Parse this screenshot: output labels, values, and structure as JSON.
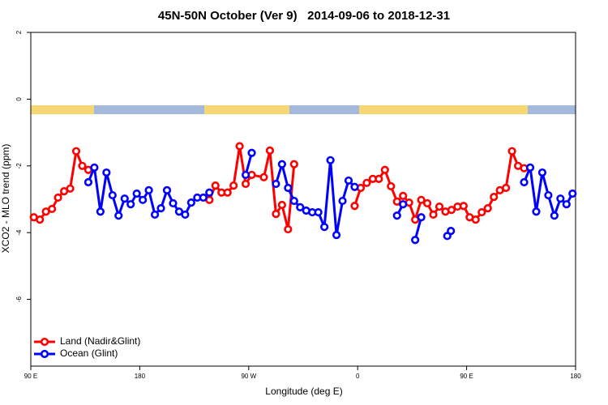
{
  "chart_data": {
    "type": "line",
    "title": "45N-50N October (Ver 9)   2014-09-06 to 2018-12-31",
    "x_label": "Longitude (deg E)",
    "y_label": "XCO2 - MLO trend (ppm)",
    "xlim": [
      90,
      540
    ],
    "xticks": [
      {
        "value": 90,
        "label": "90 E"
      },
      180,
      {
        "value": 270,
        "label": "90 W"
      },
      {
        "value": 360,
        "label": "0"
      },
      {
        "value": 450,
        "label": "90 E"
      },
      {
        "value": 540,
        "label": "180"
      }
    ],
    "ylim": [
      -8,
      2
    ],
    "yticks": [
      2,
      0,
      -2,
      -4,
      -6
    ],
    "legend": "bottom left",
    "series": [
      {
        "name": "Land (Nadir&Glint)",
        "color": "#ff0000",
        "x": [
          92.5,
          97.5,
          102.5,
          107.5,
          112.5,
          117.5,
          122.5,
          127.5,
          132.5,
          137.5,
          null,
          237.5,
          242.5,
          247.5,
          252.5,
          257.5,
          262.5,
          267.5,
          272.5,
          282.5,
          287.5,
          292.5,
          297.5,
          302.5,
          307.5,
          null,
          357.5,
          362.5,
          367.5,
          372.5,
          377.5,
          382.5,
          387.5,
          392.5,
          397.5,
          402.5,
          407.5,
          412.5,
          417.5,
          422.5,
          427.5,
          432.5,
          437.5,
          442.5,
          447.5,
          452.5,
          457.5,
          462.5,
          467.5,
          472.5,
          477.5,
          482.5,
          487.5,
          492.5,
          497.5
        ],
        "values": [
          -3.54,
          -3.61,
          -3.37,
          -3.29,
          -2.95,
          -2.76,
          -2.68,
          -1.56,
          -2.0,
          -2.12,
          null,
          -3.02,
          -2.59,
          -2.8,
          -2.8,
          -2.59,
          -1.41,
          -2.54,
          -2.27,
          -2.34,
          -1.54,
          -3.44,
          -3.17,
          -3.9,
          -1.95,
          null,
          -3.2,
          -2.66,
          -2.51,
          -2.39,
          -2.39,
          -2.12,
          -2.61,
          -3.07,
          -2.9,
          -3.1,
          -3.61,
          -3.02,
          -3.12,
          -3.46,
          -3.22,
          -3.37,
          -3.32,
          -3.22,
          -3.2,
          -3.54,
          -3.61,
          -3.39,
          -3.27,
          -2.93,
          -2.73,
          -2.66,
          -1.56,
          -2.0,
          -2.07
        ]
      },
      {
        "name": "Ocean (Glint)",
        "color": "#0000ff",
        "x": [
          137.5,
          142.5,
          147.5,
          152.5,
          157.5,
          162.5,
          167.5,
          172.5,
          177.5,
          182.5,
          187.5,
          192.5,
          197.5,
          202.5,
          207.5,
          212.5,
          217.5,
          222.5,
          227.5,
          232.5,
          237.5,
          null,
          267.5,
          272.5,
          null,
          292.5,
          297.5,
          302.5,
          307.5,
          312.5,
          317.5,
          322.5,
          327.5,
          332.5,
          337.5,
          342.5,
          347.5,
          352.5,
          357.5,
          null,
          392.5,
          397.5,
          null,
          407.5,
          412.5,
          null,
          434,
          437,
          null,
          497.5,
          502.5,
          507.5,
          512.5,
          517.5,
          522.5,
          527.5,
          532.5,
          537.5
        ],
        "values": [
          -2.49,
          -2.05,
          -3.37,
          -2.2,
          -2.88,
          -3.49,
          -2.98,
          -3.15,
          -2.83,
          -3.02,
          -2.73,
          -3.46,
          -3.27,
          -2.73,
          -3.12,
          -3.37,
          -3.46,
          -3.1,
          -2.95,
          -2.95,
          -2.8,
          null,
          -2.27,
          -1.61,
          null,
          -2.54,
          -1.95,
          -2.66,
          -3.05,
          -3.24,
          -3.34,
          -3.39,
          -3.39,
          -3.83,
          -1.83,
          -4.07,
          -3.05,
          -2.44,
          -2.63,
          null,
          -3.49,
          -3.15,
          null,
          -4.22,
          -3.54,
          null,
          -4.1,
          -3.95,
          null,
          -2.49,
          -2.05,
          -3.37,
          -2.2,
          -2.88,
          -3.49,
          -2.98,
          -3.15,
          -2.83
        ]
      }
    ]
  }
}
